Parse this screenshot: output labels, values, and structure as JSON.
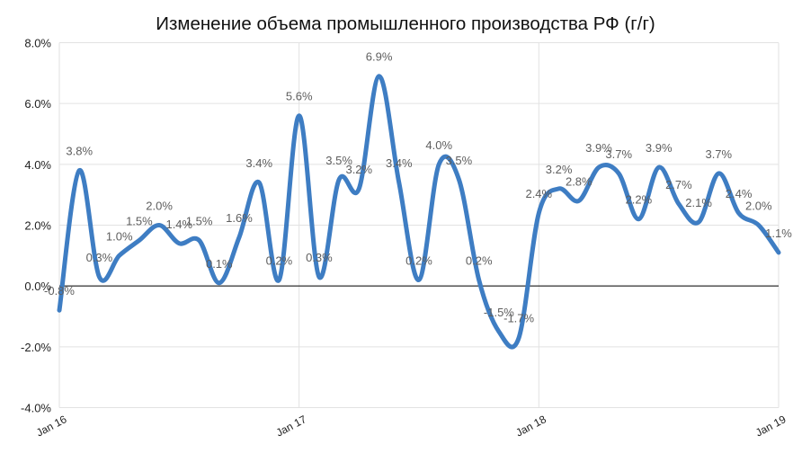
{
  "chart_data": {
    "type": "line",
    "title": "Изменение объема промышленного производства РФ (г/г)",
    "values": [
      -0.8,
      3.8,
      0.3,
      1.0,
      1.5,
      2.0,
      1.4,
      1.5,
      0.1,
      1.6,
      3.4,
      0.2,
      5.6,
      0.3,
      3.5,
      3.2,
      6.9,
      3.4,
      0.2,
      4.0,
      3.5,
      0.2,
      -1.5,
      -1.7,
      2.4,
      3.2,
      2.8,
      3.9,
      3.7,
      2.2,
      3.9,
      2.7,
      2.1,
      3.7,
      2.4,
      2.0,
      1.1
    ],
    "point_labels": [
      "-0.8%",
      "3.8%",
      "0.3%",
      "1.0%",
      "1.5%",
      "2.0%",
      "1.4%",
      "1.5%",
      "0.1%",
      "1.6%",
      "3.4%",
      "0.2%",
      "5.6%",
      "0.3%",
      "3.5%",
      "3.2%",
      "6.9%",
      "3.4%",
      "0.2%",
      "4.0%",
      "3.5%",
      "0.2%",
      "-1.5%",
      "-1.7%",
      "2.4%",
      "3.2%",
      "2.8%",
      "3.9%",
      "3.7%",
      "2.2%",
      "3.9%",
      "2.7%",
      "2.1%",
      "3.7%",
      "2.4%",
      "2.0%",
      "1.1%"
    ],
    "x_ticks": [
      {
        "index": 0,
        "label": "Jan 16"
      },
      {
        "index": 12,
        "label": "Jan 17"
      },
      {
        "index": 24,
        "label": "Jan 18"
      },
      {
        "index": 36,
        "label": "Jan 19"
      }
    ],
    "y_ticks": [
      {
        "value": 8,
        "label": "8.0%"
      },
      {
        "value": 6,
        "label": "6.0%"
      },
      {
        "value": 4,
        "label": "4.0%"
      },
      {
        "value": 2,
        "label": "2.0%"
      },
      {
        "value": 0,
        "label": "0.0%"
      },
      {
        "value": -2,
        "label": "-2.0%"
      },
      {
        "value": -4,
        "label": "-4.0%"
      }
    ],
    "ylim": [
      -4,
      8
    ],
    "grid": true,
    "zero_line": true,
    "smooth": true,
    "legend": "none",
    "colors": {
      "line": "#3e7dc3",
      "grid": "#e2e2e2",
      "zero_line": "#000000",
      "data_label": "#5e5e5e",
      "axis_label": "#222222",
      "title": "#111111",
      "background": "#ffffff"
    }
  }
}
